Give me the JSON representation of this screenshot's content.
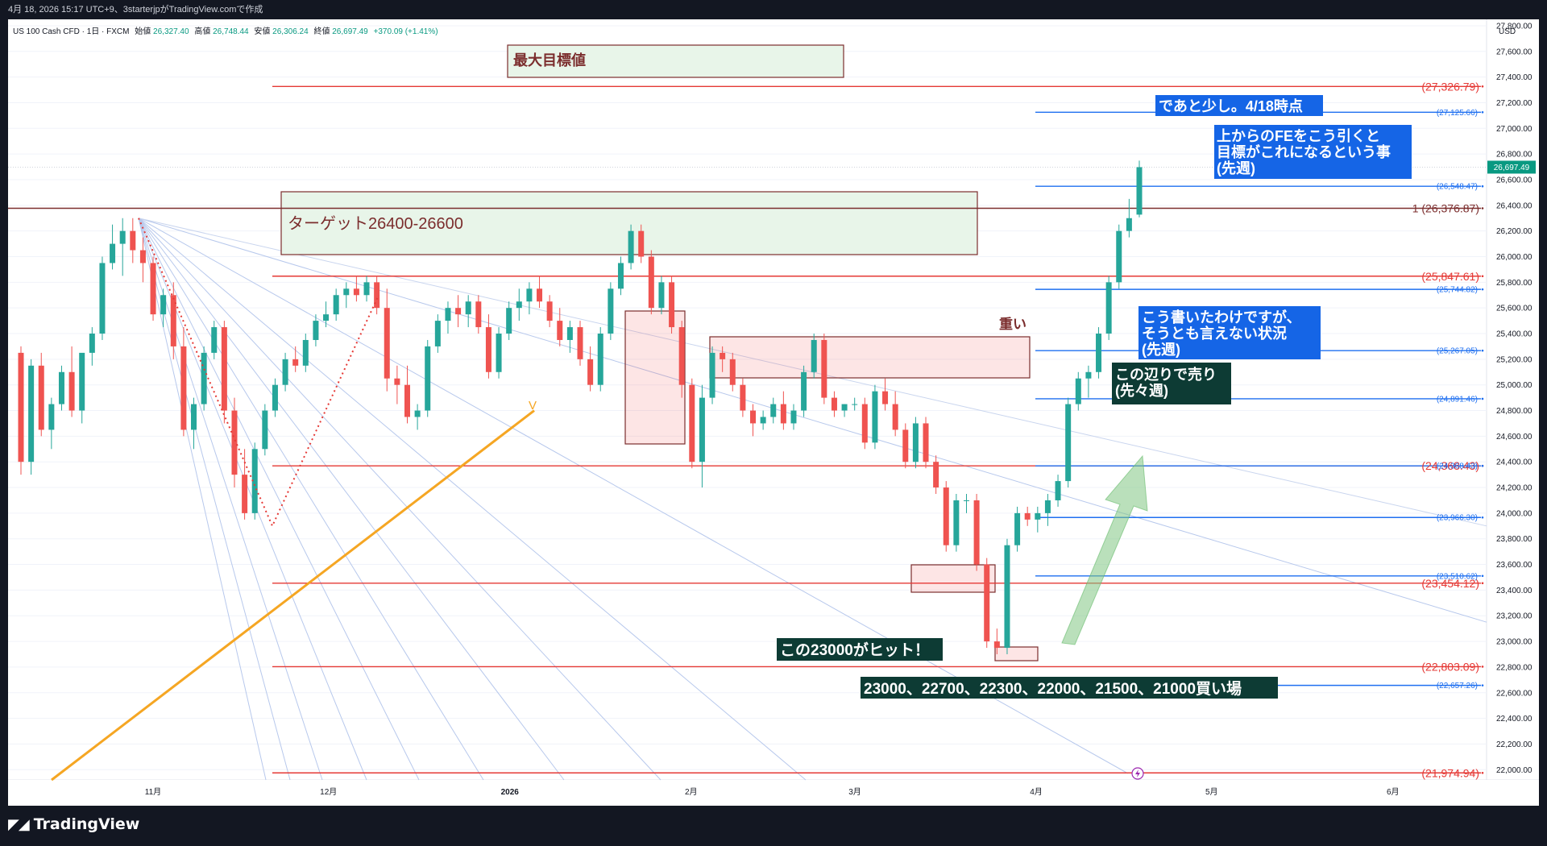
{
  "header": {
    "caption": "4月 18, 2026 15:17 UTC+9、3starterjpがTradingView.comで作成"
  },
  "symbol_line": {
    "symbol": "US 100 Cash CFD · 1日 · FXCM",
    "open_label": "始値",
    "open_value": "26,327.40",
    "high_label": "高値",
    "high_value": "26,748.44",
    "low_label": "安値",
    "low_value": "26,306.24",
    "close_label": "終値",
    "close_value": "26,697.49",
    "change": "+370.09 (+1.41%)"
  },
  "footer": {
    "brand": "TradingView"
  },
  "chart_data": {
    "type": "candlestick",
    "currency": "USD",
    "y_range": [
      21920,
      27850
    ],
    "y_ticks": [
      27800,
      27600,
      27400,
      27200,
      27000,
      26800,
      26600,
      26400,
      26200,
      26000,
      25800,
      25600,
      25400,
      25200,
      25000,
      24800,
      24600,
      24400,
      24200,
      24000,
      23800,
      23600,
      23400,
      23200,
      23000,
      22800,
      22600,
      22400,
      22200,
      22000
    ],
    "y_tick_labels": [
      "27,800.00",
      "27,600.00",
      "27,400.00",
      "27,200.00",
      "27,000.00",
      "26,800.00",
      "26,600.00",
      "26,400.00",
      "26,200.00",
      "26,000.00",
      "25,800.00",
      "25,600.00",
      "25,400.00",
      "25,200.00",
      "25,000.00",
      "24,800.00",
      "24,600.00",
      "24,400.00",
      "24,200.00",
      "24,000.00",
      "23,800.00",
      "23,600.00",
      "23,400.00",
      "23,200.00",
      "23,000.00",
      "22,800.00",
      "22,600.00",
      "22,400.00",
      "22,200.00",
      "22,000.00"
    ],
    "x_labels": [
      {
        "label": "11月",
        "date": "2025-11-01"
      },
      {
        "label": "12月",
        "date": "2025-12-01"
      },
      {
        "label": "2026",
        "date": "2026-01-01"
      },
      {
        "label": "2月",
        "date": "2026-02-01"
      },
      {
        "label": "3月",
        "date": "2026-03-01"
      },
      {
        "label": "4月",
        "date": "2026-04-01"
      },
      {
        "label": "5月",
        "date": "2026-05-01"
      },
      {
        "label": "6月",
        "date": "2026-06-01"
      }
    ],
    "last_price": {
      "value": 26697.49,
      "label": "26,697.49"
    },
    "red_levels": [
      {
        "value": 27326.79,
        "label": "(27,326.79)"
      },
      {
        "value": 26376.87,
        "label": "1 (26,376.87)"
      },
      {
        "value": 25847.61,
        "label": "(25,847.61)"
      },
      {
        "value": 24368.43,
        "label": "(24,368.43)"
      },
      {
        "value": 23454.12,
        "label": "(23,454.12)"
      },
      {
        "value": 22803.09,
        "label": "(22,803.09)"
      },
      {
        "value": 21974.94,
        "label": "(21,974.94)"
      }
    ],
    "blue_levels": [
      {
        "value": 27125.66,
        "label": "(27,125.66)"
      },
      {
        "value": 26548.47,
        "label": "(26,548.47)"
      },
      {
        "value": 25744.82,
        "label": "(25,744.82)"
      },
      {
        "value": 25267.05,
        "label": "(25,267.05)"
      },
      {
        "value": 24891.46,
        "label": "(24,891.46)"
      },
      {
        "value": 24368.43,
        "label": "(24,368.43)"
      },
      {
        "value": 23966.3,
        "label": "(23,966.30)"
      },
      {
        "value": 23510.62,
        "label": "(23,510.62)"
      },
      {
        "value": 22657.26,
        "label": "(22,657.26)"
      }
    ],
    "candles": [
      {
        "o": 25250,
        "h": 25300,
        "l": 24300,
        "c": 24400
      },
      {
        "o": 24400,
        "h": 25200,
        "l": 24300,
        "c": 25150
      },
      {
        "o": 25150,
        "h": 25250,
        "l": 24600,
        "c": 24650
      },
      {
        "o": 24650,
        "h": 24900,
        "l": 24500,
        "c": 24850
      },
      {
        "o": 24850,
        "h": 25150,
        "l": 24800,
        "c": 25100
      },
      {
        "o": 25100,
        "h": 25300,
        "l": 24750,
        "c": 24800
      },
      {
        "o": 24800,
        "h": 25200,
        "l": 24700,
        "c": 25250
      },
      {
        "o": 25250,
        "h": 25450,
        "l": 25150,
        "c": 25400
      },
      {
        "o": 25400,
        "h": 26000,
        "l": 25350,
        "c": 25950
      },
      {
        "o": 25950,
        "h": 26250,
        "l": 25900,
        "c": 26100
      },
      {
        "o": 26100,
        "h": 26300,
        "l": 25850,
        "c": 26200
      },
      {
        "o": 26200,
        "h": 26300,
        "l": 25950,
        "c": 26050
      },
      {
        "o": 26050,
        "h": 26150,
        "l": 25800,
        "c": 25950
      },
      {
        "o": 25950,
        "h": 26000,
        "l": 25500,
        "c": 25550
      },
      {
        "o": 25550,
        "h": 25750,
        "l": 25450,
        "c": 25700
      },
      {
        "o": 25700,
        "h": 25800,
        "l": 25200,
        "c": 25300
      },
      {
        "o": 25300,
        "h": 25450,
        "l": 24600,
        "c": 24650
      },
      {
        "o": 24650,
        "h": 24900,
        "l": 24500,
        "c": 24850
      },
      {
        "o": 24850,
        "h": 25300,
        "l": 24800,
        "c": 25250
      },
      {
        "o": 25250,
        "h": 25500,
        "l": 25200,
        "c": 25450
      },
      {
        "o": 25450,
        "h": 25500,
        "l": 24700,
        "c": 24800
      },
      {
        "o": 24800,
        "h": 24900,
        "l": 24200,
        "c": 24300
      },
      {
        "o": 24300,
        "h": 24500,
        "l": 23950,
        "c": 24000
      },
      {
        "o": 24000,
        "h": 24550,
        "l": 23950,
        "c": 24500
      },
      {
        "o": 24500,
        "h": 24850,
        "l": 24450,
        "c": 24800
      },
      {
        "o": 24800,
        "h": 25050,
        "l": 24750,
        "c": 25000
      },
      {
        "o": 25000,
        "h": 25250,
        "l": 24950,
        "c": 25200
      },
      {
        "o": 25200,
        "h": 25300,
        "l": 25100,
        "c": 25150
      },
      {
        "o": 25150,
        "h": 25400,
        "l": 25100,
        "c": 25350
      },
      {
        "o": 25350,
        "h": 25550,
        "l": 25300,
        "c": 25500
      },
      {
        "o": 25500,
        "h": 25650,
        "l": 25450,
        "c": 25550
      },
      {
        "o": 25550,
        "h": 25750,
        "l": 25500,
        "c": 25700
      },
      {
        "o": 25700,
        "h": 25800,
        "l": 25600,
        "c": 25750
      },
      {
        "o": 25750,
        "h": 25850,
        "l": 25650,
        "c": 25700
      },
      {
        "o": 25700,
        "h": 25850,
        "l": 25650,
        "c": 25800
      },
      {
        "o": 25800,
        "h": 25850,
        "l": 25550,
        "c": 25600
      },
      {
        "o": 25600,
        "h": 25750,
        "l": 24950,
        "c": 25050
      },
      {
        "o": 25050,
        "h": 25150,
        "l": 24850,
        "c": 25000
      },
      {
        "o": 25000,
        "h": 25150,
        "l": 24700,
        "c": 24750
      },
      {
        "o": 24750,
        "h": 24850,
        "l": 24650,
        "c": 24800
      },
      {
        "o": 24800,
        "h": 25350,
        "l": 24750,
        "c": 25300
      },
      {
        "o": 25300,
        "h": 25550,
        "l": 25250,
        "c": 25500
      },
      {
        "o": 25500,
        "h": 25650,
        "l": 25400,
        "c": 25600
      },
      {
        "o": 25600,
        "h": 25700,
        "l": 25450,
        "c": 25550
      },
      {
        "o": 25550,
        "h": 25700,
        "l": 25450,
        "c": 25650
      },
      {
        "o": 25650,
        "h": 25700,
        "l": 25400,
        "c": 25450
      },
      {
        "o": 25450,
        "h": 25550,
        "l": 25050,
        "c": 25100
      },
      {
        "o": 25100,
        "h": 25450,
        "l": 25050,
        "c": 25400
      },
      {
        "o": 25400,
        "h": 25650,
        "l": 25350,
        "c": 25600
      },
      {
        "o": 25600,
        "h": 25750,
        "l": 25500,
        "c": 25650
      },
      {
        "o": 25650,
        "h": 25800,
        "l": 25550,
        "c": 25750
      },
      {
        "o": 25750,
        "h": 25850,
        "l": 25600,
        "c": 25650
      },
      {
        "o": 25650,
        "h": 25700,
        "l": 25450,
        "c": 25500
      },
      {
        "o": 25500,
        "h": 25600,
        "l": 25300,
        "c": 25350
      },
      {
        "o": 25350,
        "h": 25500,
        "l": 25250,
        "c": 25450
      },
      {
        "o": 25450,
        "h": 25500,
        "l": 25150,
        "c": 25200
      },
      {
        "o": 25200,
        "h": 25300,
        "l": 24950,
        "c": 25000
      },
      {
        "o": 25000,
        "h": 25450,
        "l": 24950,
        "c": 25400
      },
      {
        "o": 25400,
        "h": 25800,
        "l": 25350,
        "c": 25750
      },
      {
        "o": 25750,
        "h": 26000,
        "l": 25700,
        "c": 25950
      },
      {
        "o": 25950,
        "h": 26250,
        "l": 25900,
        "c": 26200
      },
      {
        "o": 26200,
        "h": 26250,
        "l": 25950,
        "c": 26000
      },
      {
        "o": 26000,
        "h": 26050,
        "l": 25550,
        "c": 25600
      },
      {
        "o": 25600,
        "h": 25850,
        "l": 25550,
        "c": 25800
      },
      {
        "o": 25800,
        "h": 25850,
        "l": 25400,
        "c": 25450
      },
      {
        "o": 25450,
        "h": 25500,
        "l": 24900,
        "c": 25000
      },
      {
        "o": 25000,
        "h": 25050,
        "l": 24350,
        "c": 24400
      },
      {
        "o": 24400,
        "h": 25000,
        "l": 24200,
        "c": 24900
      },
      {
        "o": 24900,
        "h": 25300,
        "l": 24850,
        "c": 25250
      },
      {
        "o": 25250,
        "h": 25300,
        "l": 25100,
        "c": 25200
      },
      {
        "o": 25200,
        "h": 25250,
        "l": 24950,
        "c": 25000
      },
      {
        "o": 25000,
        "h": 25050,
        "l": 24750,
        "c": 24800
      },
      {
        "o": 24800,
        "h": 24850,
        "l": 24600,
        "c": 24700
      },
      {
        "o": 24700,
        "h": 24800,
        "l": 24650,
        "c": 24750
      },
      {
        "o": 24750,
        "h": 24900,
        "l": 24700,
        "c": 24850
      },
      {
        "o": 24850,
        "h": 24950,
        "l": 24650,
        "c": 24700
      },
      {
        "o": 24700,
        "h": 24850,
        "l": 24650,
        "c": 24800
      },
      {
        "o": 24800,
        "h": 25150,
        "l": 24750,
        "c": 25100
      },
      {
        "o": 25100,
        "h": 25400,
        "l": 25050,
        "c": 25350
      },
      {
        "o": 25350,
        "h": 25400,
        "l": 24850,
        "c": 24900
      },
      {
        "o": 24900,
        "h": 24950,
        "l": 24750,
        "c": 24800
      },
      {
        "o": 24800,
        "h": 24850,
        "l": 24750,
        "c": 24850
      },
      {
        "o": 24850,
        "h": 24900,
        "l": 24800,
        "c": 24850
      },
      {
        "o": 24850,
        "h": 24900,
        "l": 24500,
        "c": 24550
      },
      {
        "o": 24550,
        "h": 25000,
        "l": 24500,
        "c": 24950
      },
      {
        "o": 24950,
        "h": 25050,
        "l": 24800,
        "c": 24850
      },
      {
        "o": 24850,
        "h": 24950,
        "l": 24600,
        "c": 24650
      },
      {
        "o": 24650,
        "h": 24700,
        "l": 24350,
        "c": 24400
      },
      {
        "o": 24400,
        "h": 24750,
        "l": 24350,
        "c": 24700
      },
      {
        "o": 24700,
        "h": 24750,
        "l": 24350,
        "c": 24400
      },
      {
        "o": 24400,
        "h": 24450,
        "l": 24150,
        "c": 24200
      },
      {
        "o": 24200,
        "h": 24250,
        "l": 23700,
        "c": 23750
      },
      {
        "o": 23750,
        "h": 24150,
        "l": 23700,
        "c": 24100
      },
      {
        "o": 24100,
        "h": 24150,
        "l": 24000,
        "c": 24100
      },
      {
        "o": 24100,
        "h": 24150,
        "l": 23550,
        "c": 23600
      },
      {
        "o": 23600,
        "h": 23650,
        "l": 22950,
        "c": 23000
      },
      {
        "o": 23000,
        "h": 23100,
        "l": 22900,
        "c": 22950
      },
      {
        "o": 22950,
        "h": 23800,
        "l": 22900,
        "c": 23750
      },
      {
        "o": 23750,
        "h": 24050,
        "l": 23700,
        "c": 24000
      },
      {
        "o": 24000,
        "h": 24050,
        "l": 23900,
        "c": 23950
      },
      {
        "o": 23950,
        "h": 24050,
        "l": 23850,
        "c": 24000
      },
      {
        "o": 24000,
        "h": 24150,
        "l": 23900,
        "c": 24100
      },
      {
        "o": 24100,
        "h": 24300,
        "l": 24050,
        "c": 24250
      },
      {
        "o": 24250,
        "h": 24900,
        "l": 24200,
        "c": 24850
      },
      {
        "o": 24850,
        "h": 25100,
        "l": 24800,
        "c": 25050
      },
      {
        "o": 25050,
        "h": 25150,
        "l": 24900,
        "c": 25100
      },
      {
        "o": 25100,
        "h": 25450,
        "l": 25050,
        "c": 25400
      },
      {
        "o": 25400,
        "h": 25850,
        "l": 25350,
        "c": 25800
      },
      {
        "o": 25800,
        "h": 26250,
        "l": 25750,
        "c": 26200
      },
      {
        "o": 26200,
        "h": 26450,
        "l": 26150,
        "c": 26300
      },
      {
        "o": 26327.4,
        "h": 26748.44,
        "l": 26306.24,
        "c": 26697.49
      }
    ],
    "annotations": {
      "max_target": "最大目標値",
      "target_box": "ターゲット26400-26600",
      "heavy": "重い",
      "v_label": "V",
      "hit": "この23000がヒット！",
      "buy_zone": "23000、22700、22300、22000、21500、21000買い場",
      "sell": [
        "この辺りで売り",
        "(先々週)"
      ],
      "not_so": [
        "こう書いたわけですが、",
        "そうとも言えない状況",
        "(先週)"
      ],
      "fe": [
        "上からのFEをこう引くと",
        "目標がこれになるという事",
        "(先週)"
      ],
      "almost": "であと少し。4/18時点"
    },
    "colors": {
      "up": "#26a69a",
      "down": "#ef5350",
      "level_red": "#e53935",
      "level_blue": "#1e6ff0",
      "orange": "#f5a623",
      "dark_box": "#0d3b34",
      "blue_box": "#1565e6"
    }
  }
}
